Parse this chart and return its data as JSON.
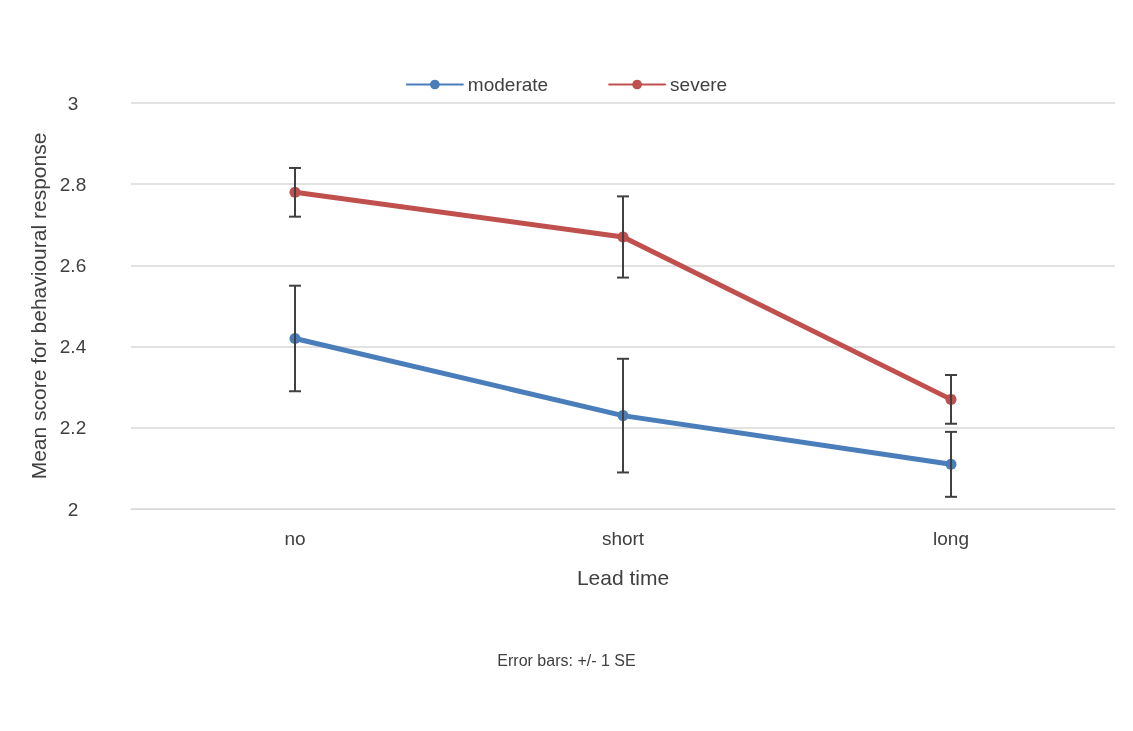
{
  "chart_data": {
    "type": "line",
    "xlabel": "Lead time",
    "ylabel": "Mean score for behavioural response",
    "categories": [
      "no",
      "short",
      "long"
    ],
    "series": [
      {
        "name": "moderate",
        "color": "#4a7ebb",
        "values": [
          2.42,
          2.23,
          2.11
        ],
        "errors": [
          0.13,
          0.14,
          0.08
        ]
      },
      {
        "name": "severe",
        "color": "#c0504d",
        "values": [
          2.78,
          2.67,
          2.27
        ],
        "errors": [
          0.06,
          0.1,
          0.06
        ]
      }
    ],
    "ylim": [
      2,
      3
    ],
    "yticks": [
      2,
      2.2,
      2.4,
      2.6,
      2.8,
      3
    ],
    "grid": "y",
    "legend": "top",
    "marker": "circle",
    "line_style": "solid",
    "annotations": [
      "Error bars: +/- 1 SE"
    ]
  }
}
